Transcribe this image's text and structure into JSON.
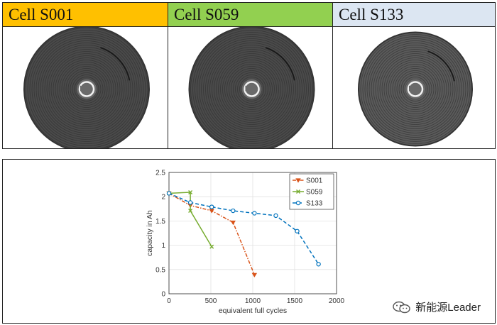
{
  "cells": [
    {
      "label": "Cell S001",
      "header_color": "#FFC000"
    },
    {
      "label": "Cell S059",
      "header_color": "#92D050"
    },
    {
      "label": "Cell S133",
      "header_color": "#DCE6F2"
    }
  ],
  "chart_data": {
    "type": "line",
    "xlabel": "equivalent full cycles",
    "ylabel": "capacity in Ah",
    "xlim": [
      0,
      2000
    ],
    "ylim": [
      0,
      2.5
    ],
    "xticks": [
      0,
      500,
      1000,
      1500,
      2000
    ],
    "yticks": [
      0,
      0.5,
      1,
      1.5,
      2,
      2.5
    ],
    "grid": true,
    "legend_position": "top-right",
    "series": [
      {
        "name": "S001",
        "color": "#D95319",
        "dash": "dashdot",
        "marker": "triangle-down",
        "x": [
          0,
          255,
          510,
          765,
          1020
        ],
        "y": [
          2.07,
          1.82,
          1.71,
          1.47,
          0.39
        ]
      },
      {
        "name": "S059",
        "color": "#77AC30",
        "dash": "solid",
        "marker": "x",
        "x": [
          0,
          255,
          255,
          510
        ],
        "y": [
          2.07,
          2.09,
          1.71,
          0.97
        ]
      },
      {
        "name": "S133",
        "color": "#0072BD",
        "dash": "dashed",
        "marker": "circle",
        "x": [
          0,
          255,
          510,
          765,
          1020,
          1275,
          1530,
          1785
        ],
        "y": [
          2.07,
          1.88,
          1.79,
          1.71,
          1.66,
          1.61,
          1.29,
          0.61
        ]
      }
    ]
  },
  "watermark": {
    "text": "新能源Leader",
    "icon": "wechat-icon"
  }
}
